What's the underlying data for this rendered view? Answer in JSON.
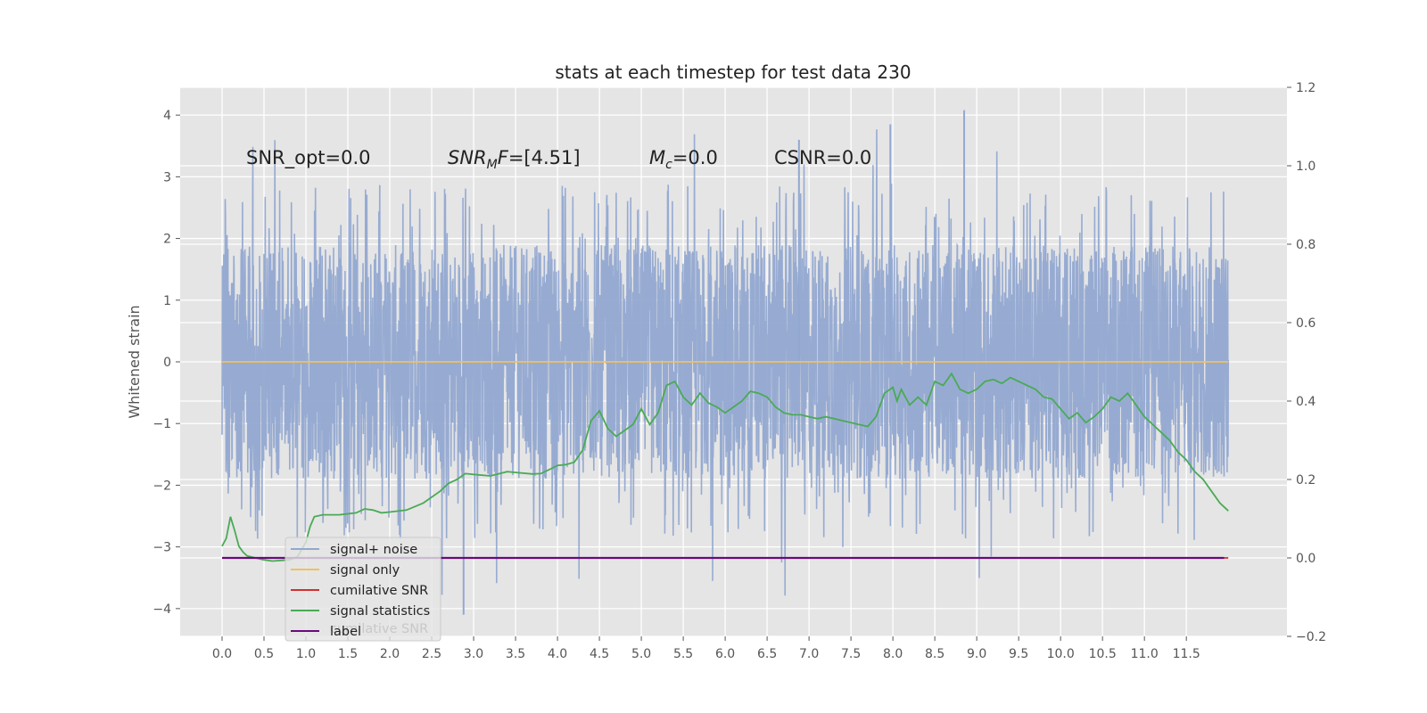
{
  "chart_data": {
    "type": "line",
    "title": "stats at each timestep for test data 230",
    "ylabel": "Whitened strain",
    "xlabel": "",
    "xlim": [
      -0.5,
      12.7
    ],
    "ylim": [
      -4.45,
      4.45
    ],
    "y2lim": [
      -0.2,
      1.2
    ],
    "grid": true,
    "legend_position": "lower-left",
    "x_ticks": [
      "0.0",
      "0.5",
      "1.0",
      "1.5",
      "2.0",
      "2.5",
      "3.0",
      "3.5",
      "4.0",
      "4.5",
      "5.0",
      "5.5",
      "6.0",
      "6.5",
      "7.0",
      "7.5",
      "8.0",
      "8.5",
      "9.0",
      "9.5",
      "10.0",
      "10.5",
      "11.0",
      "11.5"
    ],
    "y_ticks": [
      "4",
      "3",
      "2",
      "1",
      "0",
      "−1",
      "−2",
      "−3",
      "−4"
    ],
    "y2_ticks": [
      "1.2",
      "1.0",
      "0.8",
      "0.6",
      "0.4",
      "0.2",
      "0.0",
      "−0.2"
    ],
    "annotations": {
      "snr_opt": "SNR_opt=0.0",
      "snr_mf_prefix": "SNR",
      "snr_mf_sub": "M",
      "snr_mf_suffix": "F=[4.51]",
      "mc_prefix": "M",
      "mc_sub": "c",
      "mc_suffix": "=0.0",
      "csnr": "CSNR=0.0"
    },
    "series": [
      {
        "name": "signal+ noise",
        "axis": "left",
        "color": "#92a8d1",
        "sample_rate_per_second": 300,
        "x_range": [
          0.0,
          12.0
        ],
        "envelope_typical": [
          -2.0,
          2.0
        ],
        "envelope_peaks": [
          -4.1,
          4.08
        ],
        "notable_peaks": [
          [
            2.88,
            -4.1
          ],
          [
            8.85,
            4.08
          ],
          [
            7.97,
            3.85
          ],
          [
            6.88,
            3.6
          ],
          [
            6.0,
            1.25
          ]
        ]
      },
      {
        "name": "signal only",
        "axis": "left",
        "color": "#f0c060",
        "x": [
          0.0,
          12.0
        ],
        "values": [
          0.0,
          0.0
        ]
      },
      {
        "name": "cumilative SNR",
        "axis": "right",
        "color": "#d03030",
        "x": [
          0.0,
          12.0
        ],
        "values": [
          0.0,
          0.0
        ]
      },
      {
        "name": "signal statistics",
        "axis": "right",
        "color": "#4aaa55",
        "x": [
          0.0,
          0.05,
          0.1,
          0.15,
          0.2,
          0.25,
          0.3,
          0.4,
          0.5,
          0.6,
          0.8,
          0.9,
          1.0,
          1.05,
          1.1,
          1.2,
          1.4,
          1.6,
          1.7,
          1.8,
          1.9,
          2.0,
          2.2,
          2.4,
          2.6,
          2.7,
          2.8,
          2.9,
          3.0,
          3.2,
          3.4,
          3.5,
          3.7,
          3.8,
          3.9,
          4.0,
          4.1,
          4.2,
          4.3,
          4.4,
          4.5,
          4.6,
          4.7,
          4.8,
          4.9,
          5.0,
          5.1,
          5.2,
          5.3,
          5.4,
          5.5,
          5.6,
          5.7,
          5.8,
          5.9,
          6.0,
          6.1,
          6.2,
          6.3,
          6.4,
          6.5,
          6.6,
          6.7,
          6.8,
          6.9,
          7.0,
          7.1,
          7.2,
          7.3,
          7.4,
          7.5,
          7.6,
          7.7,
          7.8,
          7.9,
          8.0,
          8.05,
          8.1,
          8.2,
          8.3,
          8.4,
          8.5,
          8.6,
          8.7,
          8.8,
          8.9,
          9.0,
          9.1,
          9.2,
          9.3,
          9.4,
          9.5,
          9.6,
          9.7,
          9.8,
          9.9,
          10.0,
          10.1,
          10.2,
          10.3,
          10.4,
          10.5,
          10.6,
          10.7,
          10.8,
          10.9,
          11.0,
          11.1,
          11.2,
          11.3,
          11.4,
          11.5,
          11.6,
          11.7,
          11.8,
          11.9,
          12.0
        ],
        "values": [
          0.03,
          0.05,
          0.105,
          0.07,
          0.03,
          0.015,
          0.005,
          0.0,
          -0.005,
          -0.008,
          -0.005,
          0.003,
          0.04,
          0.08,
          0.105,
          0.11,
          0.11,
          0.115,
          0.125,
          0.122,
          0.115,
          0.117,
          0.122,
          0.14,
          0.17,
          0.19,
          0.2,
          0.215,
          0.213,
          0.209,
          0.22,
          0.218,
          0.214,
          0.215,
          0.225,
          0.236,
          0.238,
          0.244,
          0.275,
          0.35,
          0.375,
          0.33,
          0.31,
          0.325,
          0.34,
          0.38,
          0.34,
          0.37,
          0.44,
          0.45,
          0.41,
          0.39,
          0.42,
          0.395,
          0.385,
          0.37,
          0.385,
          0.4,
          0.425,
          0.42,
          0.41,
          0.385,
          0.37,
          0.365,
          0.365,
          0.36,
          0.355,
          0.36,
          0.355,
          0.35,
          0.345,
          0.34,
          0.335,
          0.36,
          0.42,
          0.435,
          0.4,
          0.43,
          0.39,
          0.41,
          0.39,
          0.45,
          0.44,
          0.47,
          0.43,
          0.42,
          0.43,
          0.45,
          0.455,
          0.445,
          0.46,
          0.45,
          0.44,
          0.43,
          0.41,
          0.405,
          0.38,
          0.355,
          0.37,
          0.345,
          0.36,
          0.38,
          0.41,
          0.4,
          0.42,
          0.39,
          0.36,
          0.34,
          0.32,
          0.3,
          0.27,
          0.25,
          0.22,
          0.2,
          0.17,
          0.14,
          0.12
        ]
      },
      {
        "name": "label",
        "axis": "right",
        "color": "#6a0a7a",
        "x": [
          0.0,
          11.95
        ],
        "values": [
          0.0,
          0.0
        ]
      }
    ],
    "legend_ghost": "cumilative SNR"
  }
}
